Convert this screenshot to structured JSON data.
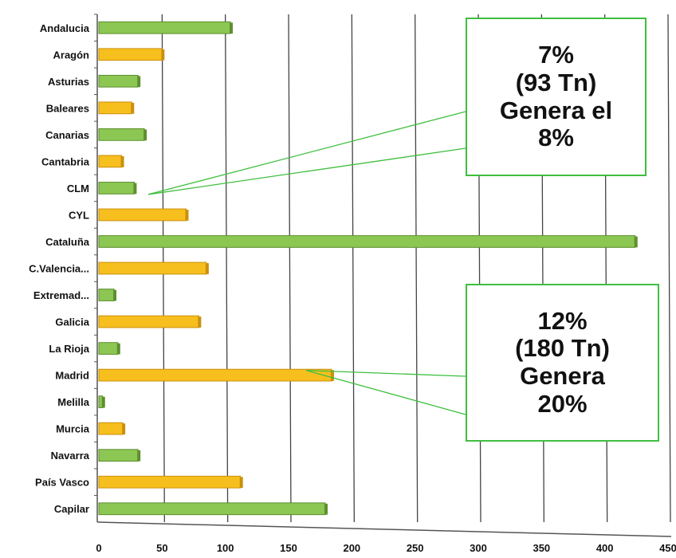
{
  "chart_data": {
    "type": "bar",
    "orientation": "horizontal",
    "categories": [
      "Andalucia",
      "Aragón",
      "Asturias",
      "Baleares",
      "Canarias",
      "Cantabria",
      "CLM",
      "CYL",
      "Cataluña",
      "C.Valencia...",
      "Extremad...",
      "Galicia",
      "La Rioja",
      "Madrid",
      "Melilla",
      "Murcia",
      "Navarra",
      "País Vasco",
      "Capilar"
    ],
    "values": [
      104,
      50,
      31,
      26,
      36,
      18,
      28,
      69,
      424,
      85,
      12,
      79,
      15,
      184,
      3,
      19,
      31,
      112,
      179
    ],
    "bar_colors": [
      "#8cc653",
      "#f7bf1e",
      "#8cc653",
      "#f7bf1e",
      "#8cc653",
      "#f7bf1e",
      "#8cc653",
      "#f7bf1e",
      "#8cc653",
      "#f7bf1e",
      "#8cc653",
      "#f7bf1e",
      "#8cc653",
      "#f7bf1e",
      "#8cc653",
      "#f7bf1e",
      "#8cc653",
      "#f7bf1e",
      "#8cc653"
    ],
    "xlim": [
      0,
      450
    ],
    "xticks": [
      "0",
      "50",
      "100",
      "150",
      "200",
      "250",
      "300",
      "350",
      "400",
      "450"
    ],
    "grid": "vertical",
    "title": "",
    "xlabel": "",
    "ylabel": ""
  },
  "annotations": [
    {
      "lines": [
        "7%",
        "(93 Tn)",
        "Genera el",
        "8%"
      ],
      "points_to": "CLM"
    },
    {
      "lines": [
        "12%",
        "(180 Tn)",
        "Genera",
        "20%"
      ],
      "points_to": "Madrid"
    }
  ],
  "colors": {
    "green_bar": "#8cc653",
    "yellow_bar": "#f7bf1e",
    "callout_border": "#3fbf3f",
    "grid": "#444444"
  }
}
